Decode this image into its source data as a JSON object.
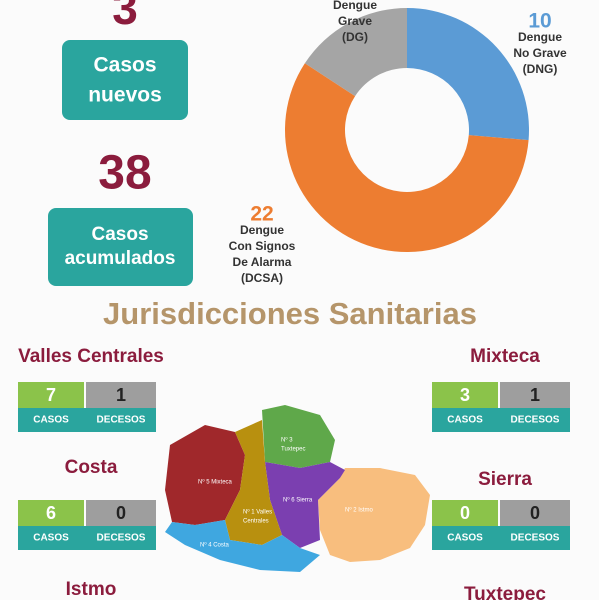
{
  "summary": {
    "new": {
      "value": 3,
      "label": [
        "Casos",
        "nuevos"
      ]
    },
    "total": {
      "value": 38,
      "label": [
        "Casos",
        "acumulados"
      ]
    }
  },
  "chart_data": {
    "type": "donut",
    "categories": [
      [
        "Dengue",
        "No Grave",
        "(DNG)"
      ],
      [
        "Dengue",
        "Con Signos",
        "De Alarma",
        "(DCSA)"
      ],
      [
        "Dengue",
        "Grave",
        "(DG)"
      ]
    ],
    "values": [
      10,
      22,
      6
    ],
    "colors": [
      "#5b9bd5",
      "#ed7d31",
      "#a5a5a5"
    ]
  },
  "section_title": "Jurisdicciones Sanitarias",
  "column_labels": [
    "CASOS",
    "DECESOS"
  ],
  "regions": [
    {
      "name": "Valles Centrales",
      "cases": 7,
      "deaths": 1
    },
    {
      "name": "Mixteca",
      "cases": 3,
      "deaths": 1
    },
    {
      "name": "Costa",
      "cases": 6,
      "deaths": 0
    },
    {
      "name": "Sierra",
      "cases": 0,
      "deaths": 0
    },
    {
      "name": "Istmo"
    },
    {
      "name": "Tuxtepec"
    }
  ],
  "map_labels": [
    [
      "Nº 3",
      "Tuxtepec"
    ],
    [
      "Nº 5 Mixteca"
    ],
    [
      "Nº 6 Sierra"
    ],
    [
      "Nº 2 Istmo"
    ],
    [
      "Nº 1 Valles",
      "Centrales"
    ],
    [
      "Nº 4 Costa"
    ]
  ]
}
